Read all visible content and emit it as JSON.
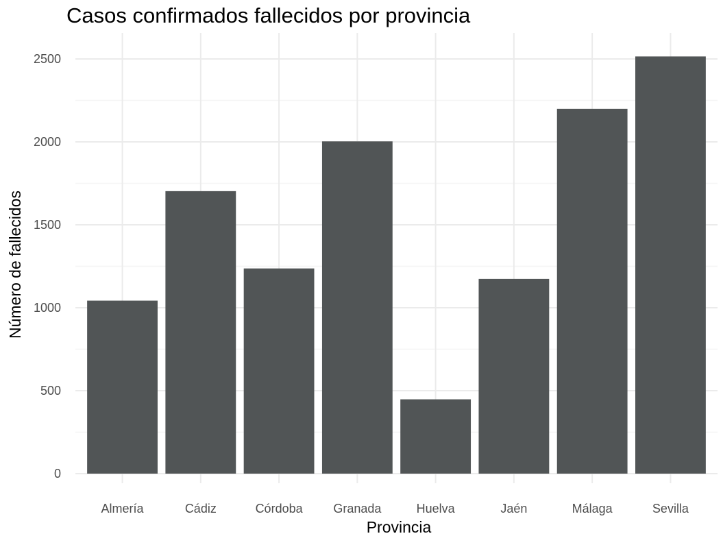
{
  "chart_data": {
    "type": "bar",
    "title": "Casos confirmados fallecidos por provincia",
    "xlabel": "Provincia",
    "ylabel": "Número de fallecidos",
    "categories": [
      "Almería",
      "Cádiz",
      "Córdoba",
      "Granada",
      "Huelva",
      "Jaén",
      "Málaga",
      "Sevilla"
    ],
    "values": [
      1043,
      1703,
      1237,
      2003,
      448,
      1174,
      2199,
      2515
    ],
    "ylim": [
      0,
      2500
    ],
    "yticks": [
      0,
      500,
      1000,
      1500,
      2000,
      2500
    ],
    "grid": true,
    "legend": "none",
    "colors": {
      "bar": "#515556",
      "grid_major": "#ebebeb",
      "grid_minor": "#f5f5f5",
      "tick_text": "#4d4d4d",
      "title_text": "#000000"
    }
  }
}
